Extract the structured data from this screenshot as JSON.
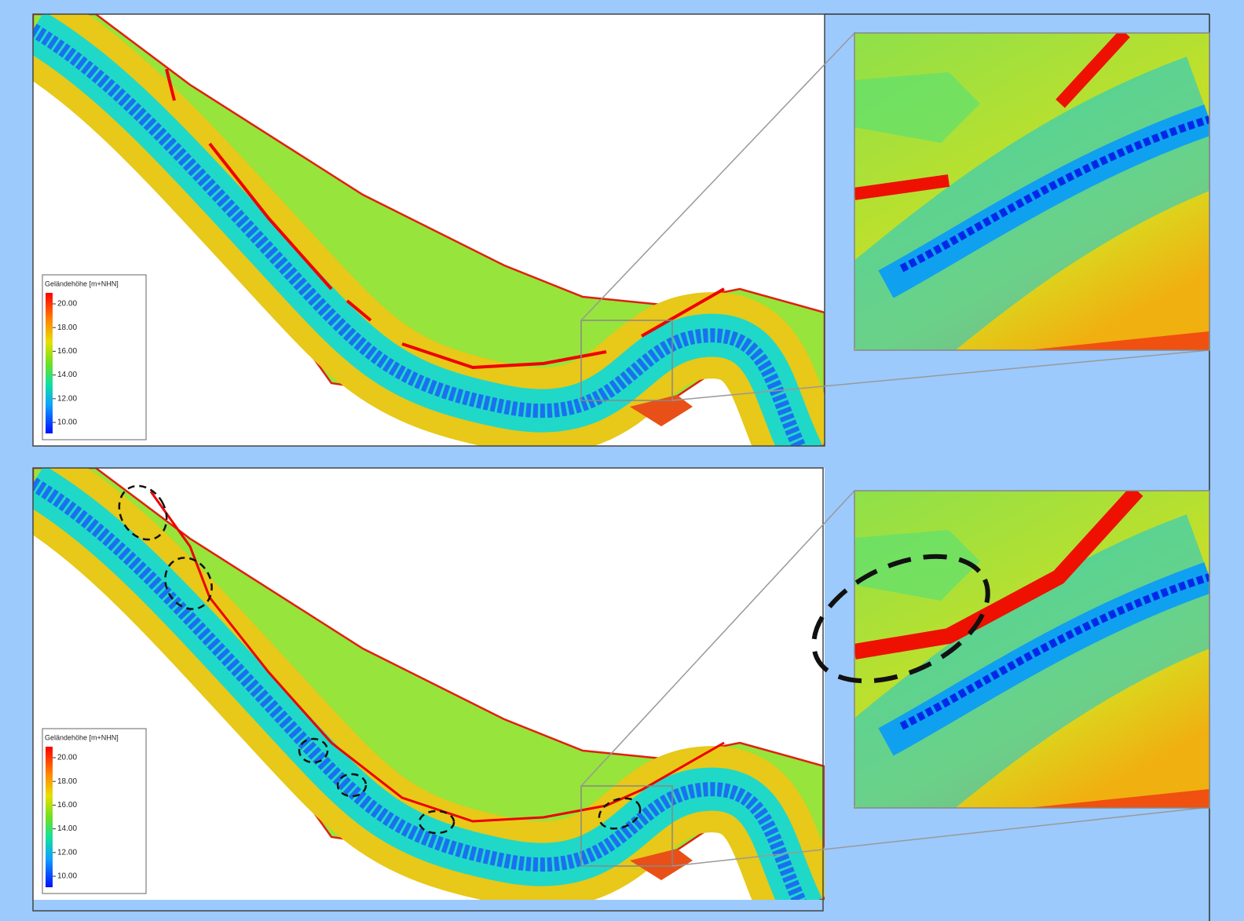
{
  "panels": [
    {
      "legend": {
        "title": "Geländehöhe [m+NHN]",
        "ticks": [
          {
            "value": 20,
            "label": "20.00"
          },
          {
            "value": 18,
            "label": "18.00"
          },
          {
            "value": 16,
            "label": "16.00"
          },
          {
            "value": 14,
            "label": "14.00"
          },
          {
            "value": 12,
            "label": "12.00"
          },
          {
            "value": 10,
            "label": "10.00"
          }
        ]
      }
    },
    {
      "legend": {
        "title": "Geländehöhe [m+NHN]",
        "ticks": [
          {
            "value": 20,
            "label": "20.00"
          },
          {
            "value": 18,
            "label": "18.00"
          },
          {
            "value": 16,
            "label": "16.00"
          },
          {
            "value": 14,
            "label": "14.00"
          },
          {
            "value": 12,
            "label": "12.00"
          },
          {
            "value": 10,
            "label": "10.00"
          }
        ]
      }
    }
  ]
}
